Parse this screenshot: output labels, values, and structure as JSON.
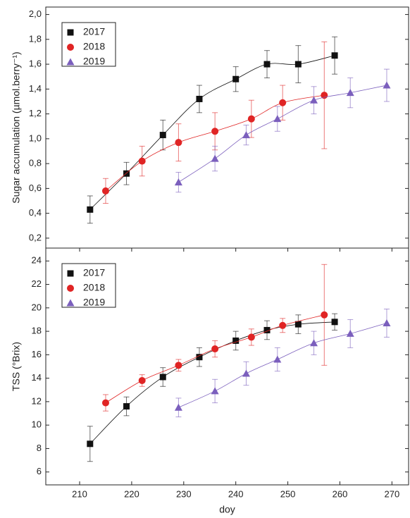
{
  "chart_data": [
    {
      "type": "scatter",
      "y_label": "Sugar accumulation (µmol.berry⁻¹)",
      "legend": "upper left",
      "xlim": [
        203.5,
        273.2
      ],
      "ylim": [
        0.12,
        2.06
      ],
      "yticks": [
        {
          "value": 0.2,
          "label": "0,2"
        },
        {
          "value": 0.4,
          "label": "0,4"
        },
        {
          "value": 0.6,
          "label": "0,6"
        },
        {
          "value": 0.8,
          "label": "0,8"
        },
        {
          "value": 1.0,
          "label": "1,0"
        },
        {
          "value": 1.2,
          "label": "1,2"
        },
        {
          "value": 1.4,
          "label": "1,4"
        },
        {
          "value": 1.6,
          "label": "1,6"
        },
        {
          "value": 1.8,
          "label": "1,8"
        },
        {
          "value": 2.0,
          "label": "2,0"
        }
      ],
      "series": [
        {
          "name": "2017",
          "color": "#111111",
          "marker": "square",
          "x": [
            212,
            219,
            226,
            233,
            240,
            246,
            252,
            259
          ],
          "values": [
            0.43,
            0.72,
            1.03,
            1.32,
            1.48,
            1.6,
            1.6,
            1.67
          ],
          "errors": [
            0.11,
            0.09,
            0.12,
            0.11,
            0.1,
            0.11,
            0.15,
            0.15
          ]
        },
        {
          "name": "2018",
          "color": "#e02424",
          "marker": "circle",
          "x": [
            215,
            222,
            229,
            236,
            243,
            249,
            257
          ],
          "values": [
            0.58,
            0.82,
            0.97,
            1.06,
            1.16,
            1.29,
            1.35
          ],
          "errors": [
            0.1,
            0.12,
            0.15,
            0.15,
            0.15,
            0.14,
            0.43
          ]
        },
        {
          "name": "2019",
          "color": "#7b5fbd",
          "marker": "triangle",
          "x": [
            229,
            236,
            242,
            248,
            255,
            262,
            269
          ],
          "values": [
            0.65,
            0.84,
            1.03,
            1.16,
            1.31,
            1.37,
            1.43
          ],
          "errors": [
            0.08,
            0.1,
            0.08,
            0.1,
            0.11,
            0.12,
            0.13
          ]
        }
      ]
    },
    {
      "type": "scatter",
      "y_label": "TSS (°Brix)",
      "x_label": "doy",
      "legend": "upper left",
      "xlim": [
        203.5,
        273.2
      ],
      "ylim": [
        4.9,
        25.1
      ],
      "xticks": [
        210,
        220,
        230,
        240,
        250,
        260,
        270
      ],
      "yticks": [
        6,
        8,
        10,
        12,
        14,
        16,
        18,
        20,
        22,
        24
      ],
      "series": [
        {
          "name": "2017",
          "color": "#111111",
          "marker": "square",
          "x": [
            212,
            219,
            226,
            233,
            240,
            246,
            252,
            259
          ],
          "values": [
            8.4,
            11.6,
            14.1,
            15.8,
            17.2,
            18.1,
            18.6,
            18.8
          ],
          "errors": [
            1.5,
            0.8,
            0.8,
            0.8,
            0.8,
            0.8,
            0.8,
            0.7
          ]
        },
        {
          "name": "2018",
          "color": "#e02424",
          "marker": "circle",
          "x": [
            215,
            222,
            229,
            236,
            243,
            249,
            257
          ],
          "values": [
            11.9,
            13.8,
            15.1,
            16.5,
            17.5,
            18.5,
            19.4
          ],
          "errors": [
            0.7,
            0.5,
            0.5,
            0.7,
            0.7,
            0.6,
            4.3
          ]
        },
        {
          "name": "2019",
          "color": "#7b5fbd",
          "marker": "triangle",
          "x": [
            229,
            236,
            242,
            248,
            255,
            262,
            269
          ],
          "values": [
            11.5,
            12.9,
            14.4,
            15.6,
            17.0,
            17.8,
            18.7
          ],
          "errors": [
            0.8,
            1.0,
            1.0,
            1.0,
            1.0,
            1.2,
            1.2
          ]
        }
      ]
    }
  ]
}
